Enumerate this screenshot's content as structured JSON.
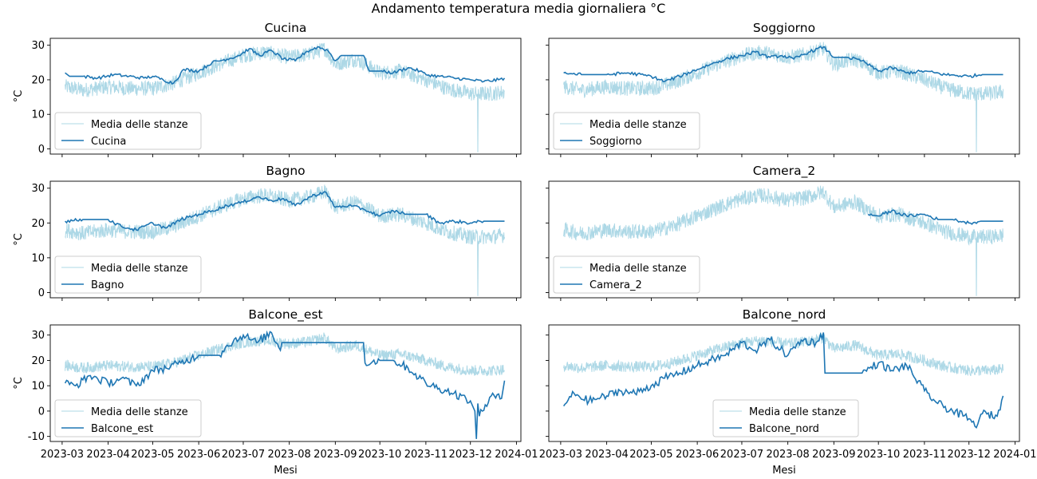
{
  "figure": {
    "title": "Andamento temperatura media giornaliera °C"
  },
  "colors": {
    "mean": "#add8e6",
    "room": "#1f77b4",
    "axes": "#000000"
  },
  "chart_data": [
    {
      "type": "line",
      "title": "Cucina",
      "ylabel": "°C",
      "xlabel": "",
      "ylim": [
        -1.5,
        32
      ],
      "yticks": [
        0,
        10,
        20,
        30
      ],
      "show_xticklabels": false,
      "legend": "lower-left",
      "series": [
        {
          "name": "Media delle stanze",
          "kind": "mean",
          "dropout": {
            "x": "2023-12-06",
            "y": -1
          }
        },
        {
          "name": "Cucina",
          "kind": "room",
          "x": [
            "2023-03-03",
            "2023-03-06",
            "2023-03-15",
            "2023-03-25",
            "2023-04-05",
            "2023-04-15",
            "2023-04-25",
            "2023-05-01",
            "2023-05-08",
            "2023-05-15",
            "2023-05-22",
            "2023-06-01",
            "2023-06-10",
            "2023-06-20",
            "2023-06-28",
            "2023-07-05",
            "2023-07-12",
            "2023-07-20",
            "2023-07-28",
            "2023-08-05",
            "2023-08-12",
            "2023-08-20",
            "2023-08-27",
            "2023-09-01",
            "2023-09-05",
            "2023-09-20",
            "2023-09-24",
            "2023-10-01",
            "2023-10-10",
            "2023-10-20",
            "2023-10-28",
            "2023-11-01",
            "2023-11-10",
            "2023-11-20",
            "2023-12-01",
            "2023-12-10",
            "2023-12-20",
            "2023-12-24"
          ],
          "values": [
            22,
            21,
            21,
            20.5,
            21.5,
            21,
            20.5,
            21,
            20,
            19,
            23,
            22.5,
            25,
            26,
            27,
            29,
            27,
            28.5,
            26,
            25.5,
            28,
            29.5,
            28.5,
            25.5,
            27,
            27,
            22.5,
            22.5,
            22,
            23.5,
            22.5,
            21.5,
            21,
            20.5,
            20,
            19.5,
            20,
            20.5
          ]
        }
      ]
    },
    {
      "type": "line",
      "title": "Soggiorno",
      "ylabel": "",
      "xlabel": "",
      "ylim": [
        -1.5,
        32
      ],
      "yticks": [
        0,
        10,
        20,
        30
      ],
      "show_xticklabels": false,
      "legend": "lower-left",
      "series": [
        {
          "name": "Media delle stanze",
          "kind": "mean",
          "dropout": {
            "x": "2023-12-06",
            "y": -1
          }
        },
        {
          "name": "Soggiorno",
          "kind": "room",
          "x": [
            "2023-03-03",
            "2023-03-15",
            "2023-04-01",
            "2023-04-15",
            "2023-05-01",
            "2023-05-10",
            "2023-05-20",
            "2023-06-01",
            "2023-06-10",
            "2023-06-20",
            "2023-07-01",
            "2023-07-10",
            "2023-07-20",
            "2023-07-28",
            "2023-08-05",
            "2023-08-15",
            "2023-08-25",
            "2023-09-01",
            "2023-09-10",
            "2023-09-20",
            "2023-10-01",
            "2023-10-10",
            "2023-10-20",
            "2023-11-01",
            "2023-11-15",
            "2023-12-01",
            "2023-12-10",
            "2023-12-24"
          ],
          "values": [
            22,
            21.5,
            21.5,
            22,
            21,
            19.5,
            21,
            23,
            24.5,
            26,
            27,
            28,
            26.5,
            27,
            26,
            28,
            29.5,
            26.5,
            26.5,
            25.5,
            22.5,
            23.5,
            22,
            22.5,
            21.5,
            21,
            21.5,
            21.5
          ]
        }
      ]
    },
    {
      "type": "line",
      "title": "Bagno",
      "ylabel": "°C",
      "xlabel": "",
      "ylim": [
        -1.5,
        32
      ],
      "yticks": [
        0,
        10,
        20,
        30
      ],
      "show_xticklabels": false,
      "legend": "lower-left",
      "series": [
        {
          "name": "Media delle stanze",
          "kind": "mean",
          "dropout": {
            "x": "2023-12-06",
            "y": -1
          }
        },
        {
          "name": "Bagno",
          "kind": "room",
          "x": [
            "2023-03-03",
            "2023-03-15",
            "2023-04-01",
            "2023-04-10",
            "2023-04-20",
            "2023-05-01",
            "2023-05-10",
            "2023-05-20",
            "2023-06-01",
            "2023-06-10",
            "2023-06-20",
            "2023-07-01",
            "2023-07-10",
            "2023-07-20",
            "2023-07-28",
            "2023-08-05",
            "2023-08-15",
            "2023-08-25",
            "2023-09-01",
            "2023-09-10",
            "2023-09-20",
            "2023-10-01",
            "2023-10-10",
            "2023-10-20",
            "2023-11-01",
            "2023-11-10",
            "2023-11-20",
            "2023-12-01",
            "2023-12-10",
            "2023-12-24"
          ],
          "values": [
            20.5,
            21,
            21,
            19,
            18,
            20,
            18.5,
            21,
            22.5,
            23.5,
            25,
            26,
            27.5,
            26.5,
            27,
            25,
            27.5,
            29,
            24.5,
            25,
            24,
            22,
            23.5,
            22.5,
            22.5,
            20,
            20.5,
            20,
            20.5,
            20.5
          ]
        }
      ]
    },
    {
      "type": "line",
      "title": "Camera_2",
      "ylabel": "",
      "xlabel": "",
      "ylim": [
        -1.5,
        32
      ],
      "yticks": [
        0,
        10,
        20,
        30
      ],
      "show_xticklabels": false,
      "legend": "lower-left",
      "series": [
        {
          "name": "Media delle stanze",
          "kind": "mean",
          "dropout": {
            "x": "2023-12-06",
            "y": -1
          }
        },
        {
          "name": "Camera_2",
          "kind": "room",
          "x": [
            "2023-09-24",
            "2023-10-01",
            "2023-10-10",
            "2023-10-20",
            "2023-11-01",
            "2023-11-10",
            "2023-11-20",
            "2023-12-01",
            "2023-12-10",
            "2023-12-24"
          ],
          "values": [
            22.5,
            22,
            23.5,
            22,
            22.5,
            21,
            21,
            20,
            20.5,
            20.5
          ]
        }
      ]
    },
    {
      "type": "line",
      "title": "Balcone_est",
      "ylabel": "°C",
      "xlabel": "Mesi",
      "ylim": [
        -12,
        34
      ],
      "yticks": [
        -10,
        0,
        10,
        20,
        30
      ],
      "show_xticklabels": true,
      "legend": "lower-left",
      "series": [
        {
          "name": "Media delle stanze",
          "kind": "mean"
        },
        {
          "name": "Balcone_est",
          "kind": "room",
          "x": [
            "2023-03-03",
            "2023-03-10",
            "2023-03-20",
            "2023-04-01",
            "2023-04-10",
            "2023-04-20",
            "2023-05-01",
            "2023-05-10",
            "2023-05-20",
            "2023-06-01",
            "2023-06-10",
            "2023-06-15",
            "2023-06-20",
            "2023-07-01",
            "2023-07-10",
            "2023-07-20",
            "2023-07-26",
            "2023-07-27",
            "2023-09-20",
            "2023-09-21",
            "2023-10-01",
            "2023-10-10",
            "2023-10-20",
            "2023-11-01",
            "2023-11-10",
            "2023-11-20",
            "2023-12-01",
            "2023-12-04",
            "2023-12-05",
            "2023-12-06",
            "2023-12-07",
            "2023-12-15",
            "2023-12-22",
            "2023-12-24"
          ],
          "values": [
            11,
            10,
            14,
            11,
            13,
            10,
            16,
            17,
            19,
            22,
            22,
            22,
            26,
            30,
            27,
            31,
            24,
            27,
            27,
            19,
            20,
            20,
            17,
            11,
            9,
            7,
            4,
            0,
            -11,
            3,
            -2,
            6,
            5,
            12
          ]
        }
      ]
    },
    {
      "type": "line",
      "title": "Balcone_nord",
      "ylabel": "",
      "xlabel": "Mesi",
      "ylim": [
        -12,
        34
      ],
      "yticks": [
        -10,
        0,
        10,
        20,
        30
      ],
      "show_xticklabels": true,
      "legend": "lower-center",
      "series": [
        {
          "name": "Media delle stanze",
          "kind": "mean"
        },
        {
          "name": "Balcone_nord",
          "kind": "room",
          "x": [
            "2023-03-03",
            "2023-03-10",
            "2023-03-20",
            "2023-04-01",
            "2023-04-10",
            "2023-04-20",
            "2023-05-01",
            "2023-05-10",
            "2023-05-20",
            "2023-06-01",
            "2023-06-10",
            "2023-06-20",
            "2023-07-01",
            "2023-07-10",
            "2023-07-20",
            "2023-08-01",
            "2023-08-10",
            "2023-08-20",
            "2023-08-25",
            "2023-08-26",
            "2023-09-20",
            "2023-10-01",
            "2023-10-10",
            "2023-10-20",
            "2023-11-01",
            "2023-11-10",
            "2023-11-20",
            "2023-12-01",
            "2023-12-05",
            "2023-12-10",
            "2023-12-20",
            "2023-12-24"
          ],
          "values": [
            2,
            7,
            4,
            6,
            8,
            7,
            10,
            13,
            15,
            18,
            20,
            22,
            27,
            24,
            28,
            22,
            28,
            27,
            31,
            15,
            15,
            19,
            16,
            18,
            8,
            3,
            0,
            -3,
            -6,
            -1,
            -2,
            6
          ]
        }
      ]
    }
  ],
  "axis_common": {
    "xlim": [
      "2023-02-21",
      "2024-01-04"
    ],
    "xticks": [
      "2023-03-01",
      "2023-04-01",
      "2023-05-01",
      "2023-06-01",
      "2023-07-01",
      "2023-08-01",
      "2023-09-01",
      "2023-10-01",
      "2023-11-01",
      "2023-12-01",
      "2024-01-01"
    ],
    "xtick_labels": [
      "2023-03",
      "2023-04",
      "2023-05",
      "2023-06",
      "2023-07",
      "2023-08",
      "2023-09",
      "2023-10",
      "2023-11",
      "2023-12",
      "2024-01"
    ],
    "mean_series": {
      "x": [
        "2023-03-03",
        "2023-03-15",
        "2023-04-01",
        "2023-04-15",
        "2023-05-01",
        "2023-05-15",
        "2023-06-01",
        "2023-06-15",
        "2023-07-01",
        "2023-07-15",
        "2023-08-01",
        "2023-08-15",
        "2023-08-25",
        "2023-09-01",
        "2023-09-15",
        "2023-10-01",
        "2023-10-15",
        "2023-11-01",
        "2023-11-15",
        "2023-12-01",
        "2023-12-15",
        "2023-12-24"
      ],
      "values": [
        18,
        17,
        18,
        17.5,
        17.5,
        19,
        22,
        24.5,
        27,
        28,
        26.5,
        27.5,
        29,
        24.5,
        26,
        22,
        22.5,
        20,
        17.5,
        16,
        16,
        16.5
      ],
      "noise": 2.2
    }
  }
}
